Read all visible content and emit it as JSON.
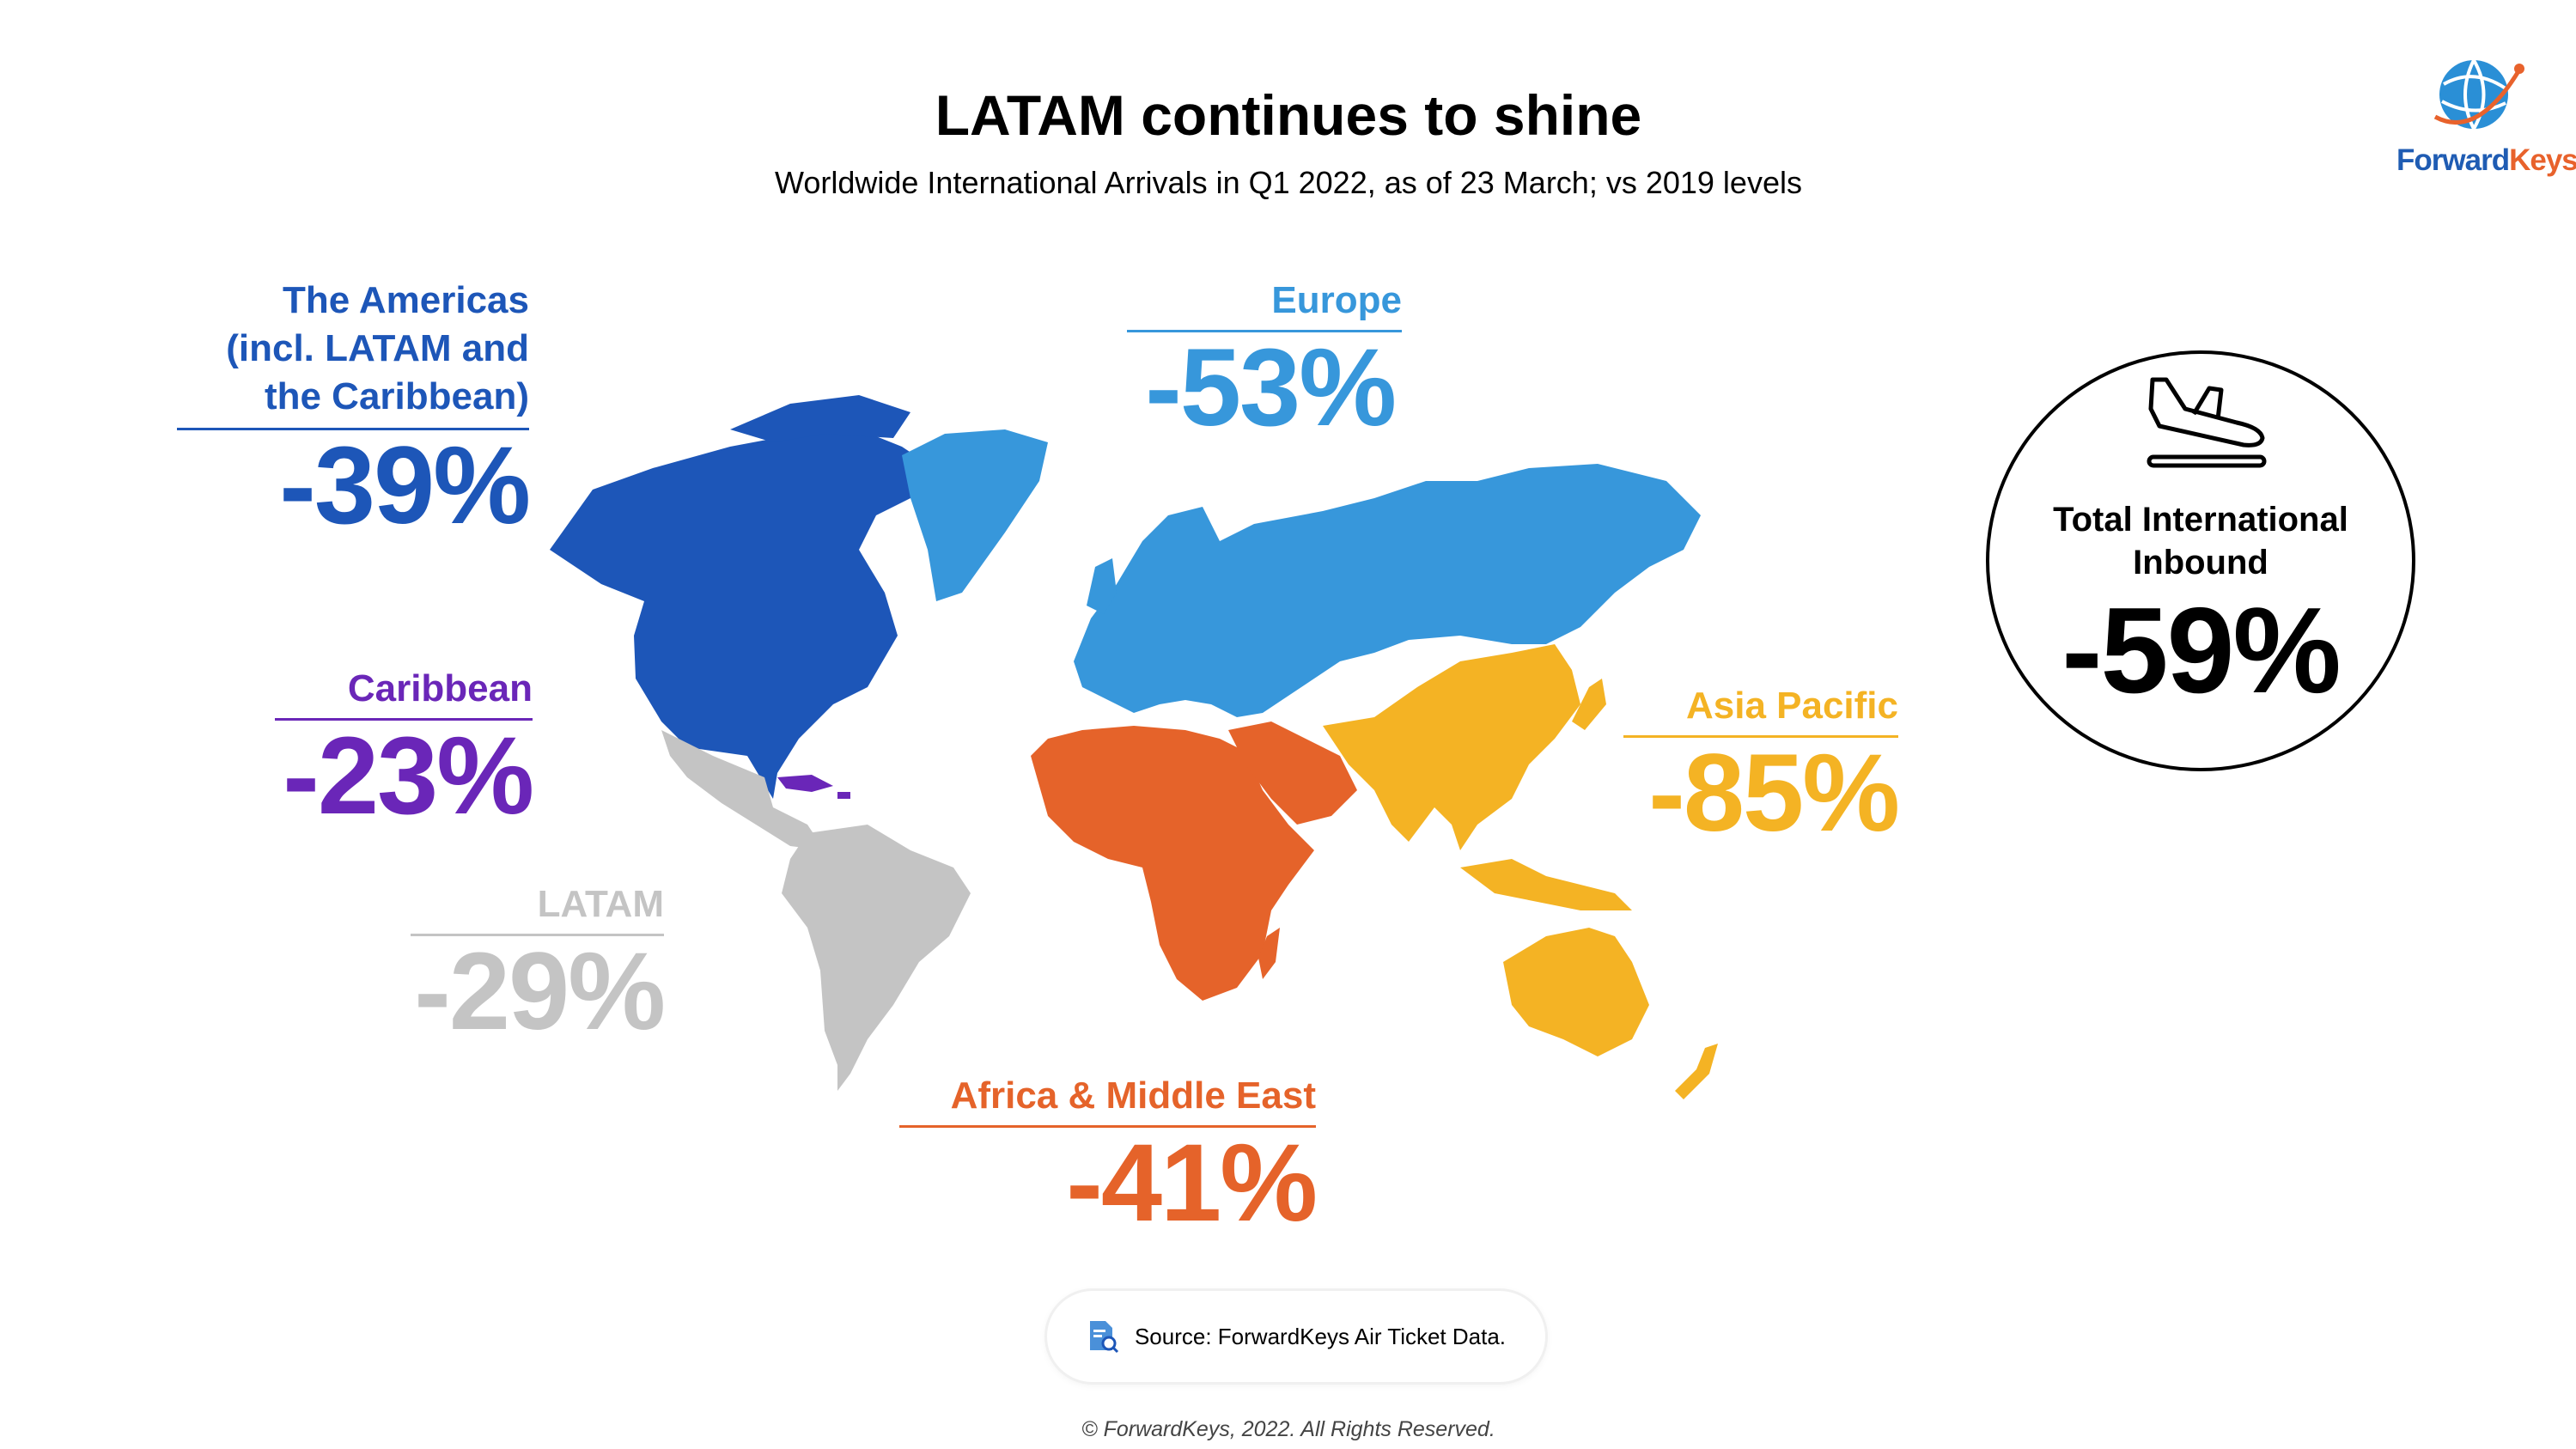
{
  "header": {
    "title": "LATAM continues to shine",
    "subtitle": "Worldwide International Arrivals in Q1 2022, as of 23 March; vs 2019 levels"
  },
  "logo": {
    "name": "ForwardKeys",
    "text_part1": "Forward",
    "text_part2": "Keys"
  },
  "regions": {
    "americas": {
      "label_line1": "The Americas",
      "label_line2": "(incl. LATAM and",
      "label_line3": "the Caribbean)",
      "value": "-39%",
      "color": "#1d56b8"
    },
    "caribbean": {
      "label": "Caribbean",
      "value": "-23%",
      "color": "#6a26b8"
    },
    "latam": {
      "label": "LATAM",
      "value": "-29%",
      "color": "#c4c4c4"
    },
    "europe": {
      "label": "Europe",
      "value": "-53%",
      "color": "#3797db"
    },
    "asia_pacific": {
      "label": "Asia Pacific",
      "value": "-85%",
      "color": "#f4b324"
    },
    "africa_me": {
      "label": "Africa & Middle East",
      "value": "-41%",
      "color": "#e5632a"
    }
  },
  "total": {
    "label_line1": "Total International",
    "label_line2": "Inbound",
    "value": "-59%",
    "icon": "plane-landing-icon"
  },
  "footer": {
    "source": "Source: ForwardKeys Air Ticket Data.",
    "source_icon": "document-search-icon",
    "copyright": "© ForwardKeys, 2022. All Rights Reserved."
  }
}
